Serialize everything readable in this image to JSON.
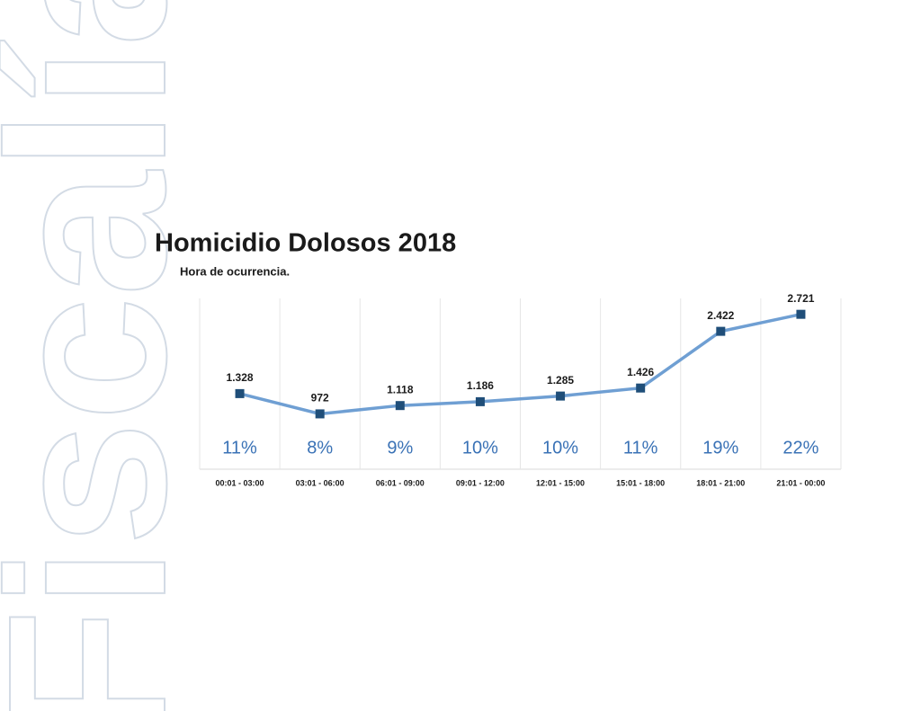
{
  "watermark": "Fiscalía",
  "chart_data": {
    "type": "line",
    "title": "Homicidio Dolosos 2018",
    "subtitle": "Hora de ocurrencia.",
    "categories": [
      "00:01 - 03:00",
      "03:01 - 06:00",
      "06:01 - 09:00",
      "09:01 - 12:00",
      "12:01 - 15:00",
      "15:01 - 18:00",
      "18:01 - 21:00",
      "21:01 - 00:00"
    ],
    "series": [
      {
        "color": "#6f9fd3",
        "marker_color": "#1f4e79",
        "values": [
          1328,
          972,
          1118,
          1186,
          1285,
          1426,
          2422,
          2721
        ],
        "value_labels": [
          "1.328",
          "972",
          "1.118",
          "1.186",
          "1.285",
          "1.426",
          "2.422",
          "2.721"
        ]
      }
    ],
    "percentages": {
      "color": "#3a72b6",
      "values": [
        11,
        8,
        9,
        10,
        10,
        11,
        19,
        22
      ],
      "value_labels": [
        "11%",
        "8%",
        "9%",
        "10%",
        "10%",
        "11%",
        "19%",
        "22%"
      ]
    },
    "ylim": [
      0,
      3000
    ],
    "grid": true
  }
}
